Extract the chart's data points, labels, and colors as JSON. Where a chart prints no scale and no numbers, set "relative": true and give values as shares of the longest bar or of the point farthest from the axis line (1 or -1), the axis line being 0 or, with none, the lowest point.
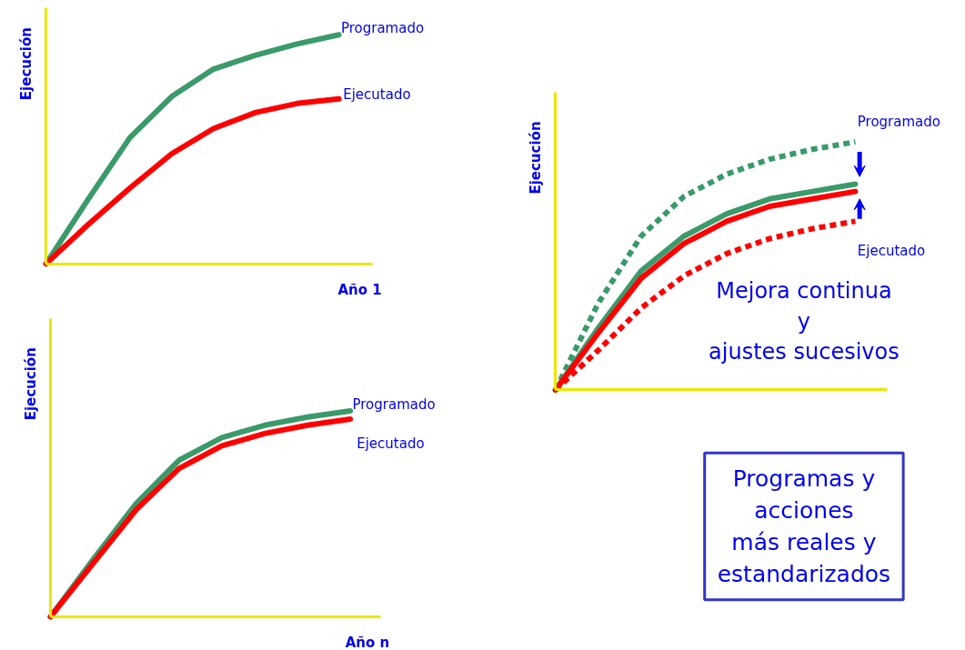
{
  "chart_data": [
    {
      "type": "line",
      "relative": true,
      "ylabel": "Ejecución",
      "xlabel": "Año 1",
      "grid": false,
      "categories": [
        null,
        null,
        null,
        null,
        null,
        null,
        null,
        null
      ],
      "series": [
        {
          "name": "Programado",
          "color": "#3a9a6a",
          "line_style": "solid",
          "values": [
            0,
            0.28,
            0.55,
            0.73,
            0.85,
            0.91,
            0.96,
            1.0
          ]
        },
        {
          "name": "Ejecutado",
          "color": "#ff0000",
          "line_style": "solid",
          "values": [
            0,
            0.17,
            0.33,
            0.48,
            0.59,
            0.66,
            0.7,
            0.72
          ]
        }
      ]
    },
    {
      "type": "line",
      "relative": true,
      "ylabel": "Ejecución",
      "xlabel": "Año n",
      "grid": false,
      "categories": [
        null,
        null,
        null,
        null,
        null,
        null,
        null,
        null
      ],
      "series": [
        {
          "name": "Programado",
          "color": "#3a9a6a",
          "line_style": "solid",
          "values": [
            0,
            0.28,
            0.55,
            0.76,
            0.87,
            0.93,
            0.97,
            1.0
          ]
        },
        {
          "name": "Ejecutado",
          "color": "#ff0000",
          "line_style": "solid",
          "values": [
            0,
            0.26,
            0.52,
            0.72,
            0.83,
            0.89,
            0.93,
            0.96
          ]
        }
      ]
    },
    {
      "type": "line",
      "relative": true,
      "ylabel": "Ejecución",
      "grid": false,
      "categories": [
        null,
        null,
        null,
        null,
        null,
        null,
        null,
        null
      ],
      "annotations": [
        "Mejora continua\ny\najustes sucesivos",
        "Programas y\nacciones\nmás reales y\nestandarizados"
      ],
      "series": [
        {
          "name": "Programado",
          "color": "#3a9a6a",
          "line_style": "dotted",
          "values": [
            0,
            0.35,
            0.62,
            0.78,
            0.87,
            0.93,
            0.97,
            1.0
          ]
        },
        {
          "color": "#3a9a6a",
          "line_style": "solid",
          "values": [
            0,
            0.25,
            0.48,
            0.62,
            0.71,
            0.77,
            0.8,
            0.83
          ]
        },
        {
          "color": "#ff0000",
          "line_style": "solid",
          "values": [
            0,
            0.23,
            0.45,
            0.59,
            0.68,
            0.74,
            0.77,
            0.8
          ]
        },
        {
          "name": "Ejecutado",
          "color": "#ff0000",
          "line_style": "dotted",
          "values": [
            0,
            0.16,
            0.33,
            0.46,
            0.55,
            0.61,
            0.65,
            0.68
          ]
        }
      ]
    }
  ]
}
